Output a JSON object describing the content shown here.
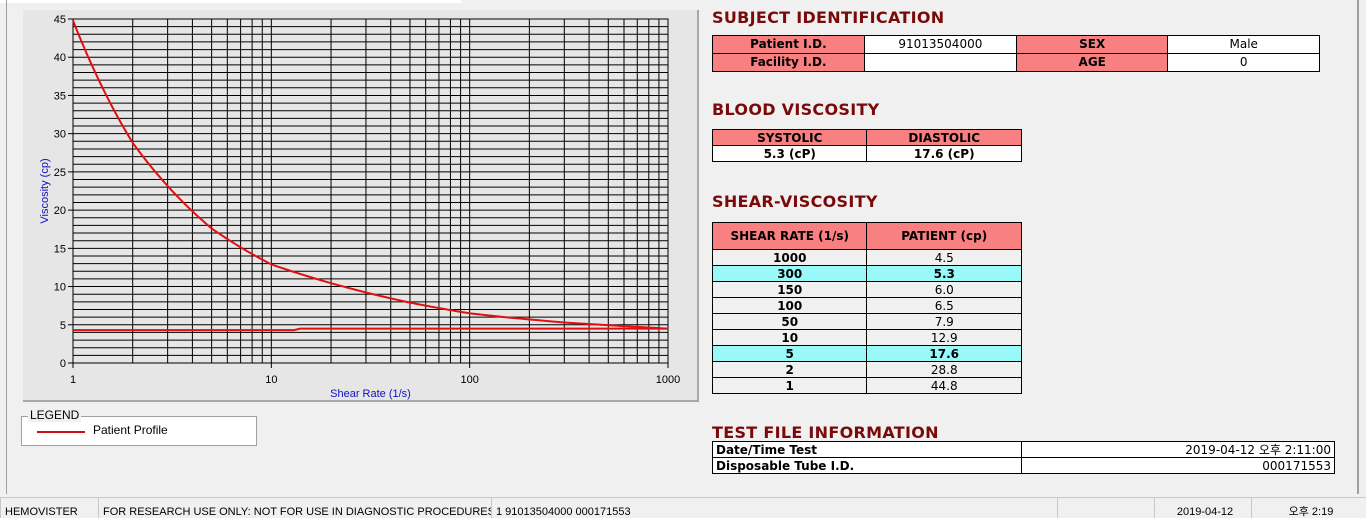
{
  "chart_data": {
    "type": "line",
    "xlabel": "Shear Rate (1/s)",
    "ylabel": "Viscosity (cp)",
    "x_scale": "log",
    "xlim": [
      1,
      1000
    ],
    "ylim": [
      0,
      45
    ],
    "x_ticks": [
      "1",
      "10",
      "100",
      "1000"
    ],
    "y_ticks": [
      "0",
      "5",
      "10",
      "15",
      "20",
      "25",
      "30",
      "35",
      "40",
      "45"
    ],
    "grid": true,
    "series": [
      {
        "x": [
          1,
          2,
          5,
          10,
          50,
          100,
          150,
          300,
          1000
        ],
        "y": [
          44.8,
          28.8,
          17.6,
          12.9,
          7.9,
          6.5,
          6.0,
          5.3,
          4.5
        ],
        "color": "#e01010"
      },
      {
        "x": [
          1,
          13,
          14,
          1000
        ],
        "y": [
          4.3,
          4.3,
          4.5,
          4.5
        ],
        "color": "#e01010"
      }
    ]
  },
  "legend": {
    "title": "LEGEND",
    "entries": [
      "Patient Profile"
    ],
    "color": "#d01010"
  },
  "subject": {
    "title": "SUBJECT IDENTIFICATION",
    "patient_id_label": "Patient I.D.",
    "patient_id": "91013504000",
    "sex_label": "SEX",
    "sex": "Male",
    "facility_label": "Facility I.D.",
    "facility": "",
    "age_label": "AGE",
    "age": "0"
  },
  "blood": {
    "title": "BLOOD VISCOSITY",
    "systolic_label": "SYSTOLIC",
    "diastolic_label": "DIASTOLIC",
    "systolic": "5.3 (cP)",
    "diastolic": "17.6 (cP)"
  },
  "shear": {
    "title": "SHEAR-VISCOSITY",
    "headers": [
      "SHEAR RATE (1/s)",
      "PATIENT (cp)"
    ],
    "rows": [
      {
        "rate": "1000",
        "val": "4.5"
      },
      {
        "rate": "300",
        "val": "5.3",
        "hl": true
      },
      {
        "rate": "150",
        "val": "6.0"
      },
      {
        "rate": "100",
        "val": "6.5"
      },
      {
        "rate": "50",
        "val": "7.9"
      },
      {
        "rate": "10",
        "val": "12.9"
      },
      {
        "rate": "5",
        "val": "17.6",
        "hl": true
      },
      {
        "rate": "2",
        "val": "28.8"
      },
      {
        "rate": "1",
        "val": "44.8"
      }
    ]
  },
  "testfile": {
    "title": "TEST FILE INFORMATION",
    "datetime_label": "Date/Time Test",
    "datetime": "2019-04-12   오후 2:11:00",
    "tube_label": "Disposable Tube I.D.",
    "tube": "000171553"
  },
  "status": {
    "app": "HEMOVISTER",
    "notice": "FOR RESEARCH USE ONLY: NOT FOR USE IN DIAGNOSTIC PROCEDURES",
    "file": "1  91013504000  000171553",
    "empty": "",
    "date": "2019-04-12",
    "time": "오후 2:19"
  }
}
